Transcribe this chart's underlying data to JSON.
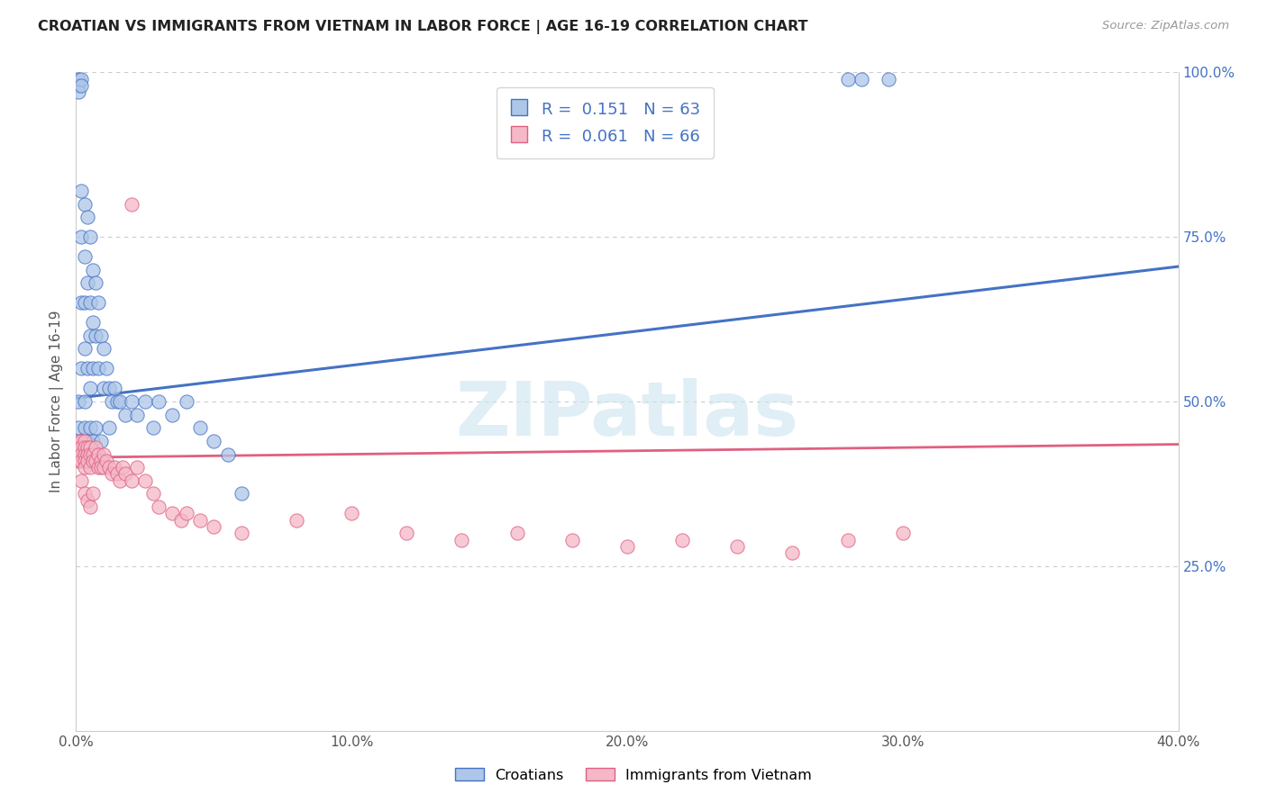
{
  "title": "CROATIAN VS IMMIGRANTS FROM VIETNAM IN LABOR FORCE | AGE 16-19 CORRELATION CHART",
  "source": "Source: ZipAtlas.com",
  "ylabel": "In Labor Force | Age 16-19",
  "xlim": [
    0.0,
    0.4
  ],
  "ylim": [
    0.0,
    1.0
  ],
  "xtick_labels": [
    "0.0%",
    "10.0%",
    "20.0%",
    "30.0%",
    "40.0%"
  ],
  "xtick_values": [
    0.0,
    0.1,
    0.2,
    0.3,
    0.4
  ],
  "ytick_labels": [
    "25.0%",
    "50.0%",
    "75.0%",
    "100.0%"
  ],
  "ytick_values": [
    0.25,
    0.5,
    0.75,
    1.0
  ],
  "legend_R1": "0.151",
  "legend_N1": "63",
  "legend_R2": "0.061",
  "legend_N2": "66",
  "blue_color": "#aec6e8",
  "pink_color": "#f4b8c8",
  "blue_edge_color": "#4472c4",
  "pink_edge_color": "#e06080",
  "blue_line_color": "#4472c4",
  "pink_line_color": "#e06080",
  "watermark_color": "#cce4f0",
  "watermark_text": "ZIPatlas",
  "blue_scatter_x": [
    0.001,
    0.001,
    0.001,
    0.001,
    0.002,
    0.002,
    0.002,
    0.002,
    0.002,
    0.002,
    0.003,
    0.003,
    0.003,
    0.003,
    0.003,
    0.004,
    0.004,
    0.004,
    0.005,
    0.005,
    0.005,
    0.005,
    0.006,
    0.006,
    0.006,
    0.007,
    0.007,
    0.008,
    0.008,
    0.009,
    0.01,
    0.01,
    0.011,
    0.012,
    0.013,
    0.014,
    0.015,
    0.016,
    0.018,
    0.02,
    0.022,
    0.025,
    0.028,
    0.03,
    0.035,
    0.04,
    0.045,
    0.05,
    0.055,
    0.06,
    0.28,
    0.285,
    0.295,
    0.001,
    0.002,
    0.003,
    0.004,
    0.005,
    0.006,
    0.007,
    0.008,
    0.009,
    0.012
  ],
  "blue_scatter_y": [
    0.99,
    0.98,
    0.97,
    0.5,
    0.99,
    0.98,
    0.82,
    0.75,
    0.65,
    0.55,
    0.8,
    0.72,
    0.65,
    0.58,
    0.5,
    0.78,
    0.68,
    0.55,
    0.75,
    0.65,
    0.6,
    0.52,
    0.7,
    0.62,
    0.55,
    0.68,
    0.6,
    0.65,
    0.55,
    0.6,
    0.58,
    0.52,
    0.55,
    0.52,
    0.5,
    0.52,
    0.5,
    0.5,
    0.48,
    0.5,
    0.48,
    0.5,
    0.46,
    0.5,
    0.48,
    0.5,
    0.46,
    0.44,
    0.42,
    0.36,
    0.99,
    0.99,
    0.99,
    0.46,
    0.44,
    0.46,
    0.44,
    0.46,
    0.44,
    0.46,
    0.42,
    0.44,
    0.46
  ],
  "pink_scatter_x": [
    0.001,
    0.001,
    0.001,
    0.001,
    0.002,
    0.002,
    0.002,
    0.002,
    0.003,
    0.003,
    0.003,
    0.003,
    0.003,
    0.004,
    0.004,
    0.004,
    0.005,
    0.005,
    0.005,
    0.006,
    0.006,
    0.007,
    0.007,
    0.008,
    0.008,
    0.009,
    0.009,
    0.01,
    0.01,
    0.011,
    0.012,
    0.013,
    0.014,
    0.015,
    0.016,
    0.017,
    0.018,
    0.02,
    0.022,
    0.025,
    0.028,
    0.03,
    0.035,
    0.038,
    0.04,
    0.045,
    0.05,
    0.06,
    0.08,
    0.1,
    0.12,
    0.14,
    0.16,
    0.18,
    0.2,
    0.22,
    0.24,
    0.26,
    0.28,
    0.3,
    0.002,
    0.003,
    0.004,
    0.005,
    0.006,
    0.02
  ],
  "pink_scatter_y": [
    0.44,
    0.43,
    0.42,
    0.41,
    0.44,
    0.43,
    0.42,
    0.41,
    0.44,
    0.43,
    0.42,
    0.41,
    0.4,
    0.43,
    0.42,
    0.41,
    0.43,
    0.42,
    0.4,
    0.42,
    0.41,
    0.43,
    0.41,
    0.42,
    0.4,
    0.41,
    0.4,
    0.42,
    0.4,
    0.41,
    0.4,
    0.39,
    0.4,
    0.39,
    0.38,
    0.4,
    0.39,
    0.38,
    0.4,
    0.38,
    0.36,
    0.34,
    0.33,
    0.32,
    0.33,
    0.32,
    0.31,
    0.3,
    0.32,
    0.33,
    0.3,
    0.29,
    0.3,
    0.29,
    0.28,
    0.29,
    0.28,
    0.27,
    0.29,
    0.3,
    0.38,
    0.36,
    0.35,
    0.34,
    0.36,
    0.8
  ],
  "blue_trend_x0": 0.0,
  "blue_trend_x1": 0.4,
  "blue_trend_y0": 0.505,
  "blue_trend_y1": 0.705,
  "pink_trend_x0": 0.0,
  "pink_trend_x1": 0.4,
  "pink_trend_y0": 0.415,
  "pink_trend_y1": 0.435
}
